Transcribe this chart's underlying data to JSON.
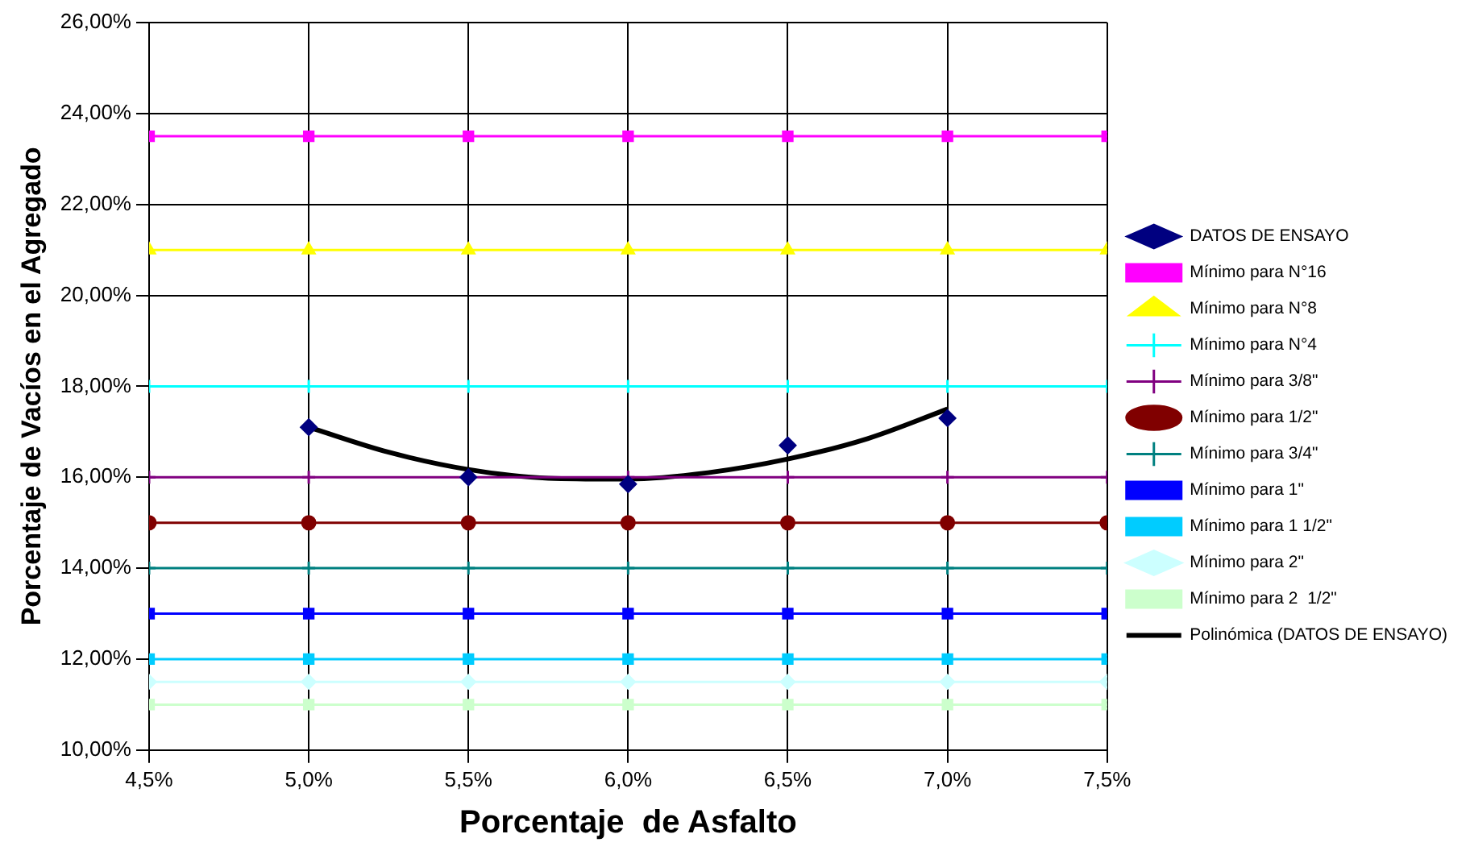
{
  "chart_data": {
    "type": "line",
    "xlabel": "Porcentaje  de Asfalto",
    "ylabel": "Porcentaje de Vacíos en el Agregado",
    "x": [
      4.5,
      5.0,
      5.5,
      6.0,
      6.5,
      7.0,
      7.5
    ],
    "xlim": [
      4.5,
      7.5
    ],
    "xticks": [
      {
        "value": 4.5,
        "label": "4,5%"
      },
      {
        "value": 5.0,
        "label": "5,0%"
      },
      {
        "value": 5.5,
        "label": "5,5%"
      },
      {
        "value": 6.0,
        "label": "6,0%"
      },
      {
        "value": 6.5,
        "label": "6,5%"
      },
      {
        "value": 7.0,
        "label": "7,0%"
      },
      {
        "value": 7.5,
        "label": "7,5%"
      }
    ],
    "ylim": [
      10,
      26
    ],
    "yticks": [
      {
        "value": 10,
        "label": "10,00%"
      },
      {
        "value": 12,
        "label": "12,00%"
      },
      {
        "value": 14,
        "label": "14,00%"
      },
      {
        "value": 16,
        "label": "16,00%"
      },
      {
        "value": 18,
        "label": "18,00%"
      },
      {
        "value": 20,
        "label": "20,00%"
      },
      {
        "value": 22,
        "label": "22,00%"
      },
      {
        "value": 24,
        "label": "24,00%"
      },
      {
        "value": 26,
        "label": "26,00%"
      }
    ],
    "grid": true,
    "legend": "right",
    "series": [
      {
        "name": "DATOS DE ENSAYO",
        "type": "scatter",
        "marker": "diamond",
        "color": "#000080",
        "x": [
          5.0,
          5.5,
          6.0,
          6.5,
          7.0
        ],
        "values": [
          17.1,
          16.0,
          15.85,
          16.7,
          17.3
        ]
      },
      {
        "name": "Mínimo para N°16",
        "marker": "square",
        "color": "#ff00ff",
        "values": [
          23.5,
          23.5,
          23.5,
          23.5,
          23.5,
          23.5,
          23.5
        ]
      },
      {
        "name": "Mínimo para N°8",
        "marker": "triangle",
        "color": "#ffff00",
        "values": [
          21,
          21,
          21,
          21,
          21,
          21,
          21
        ]
      },
      {
        "name": "Mínimo para N°4",
        "marker": "cross",
        "color": "#00ffff",
        "values": [
          18,
          18,
          18,
          18,
          18,
          18,
          18
        ]
      },
      {
        "name": "Mínimo para 3/8\"",
        "marker": "cross",
        "color": "#800080",
        "values": [
          16,
          16,
          16,
          16,
          16,
          16,
          16
        ]
      },
      {
        "name": "Mínimo para 1/2\"",
        "marker": "circle",
        "color": "#800000",
        "values": [
          15,
          15,
          15,
          15,
          15,
          15,
          15
        ]
      },
      {
        "name": "Mínimo para 3/4\"",
        "marker": "cross",
        "color": "#008080",
        "values": [
          14,
          14,
          14,
          14,
          14,
          14,
          14
        ]
      },
      {
        "name": "Mínimo para 1\"",
        "marker": "square",
        "color": "#0000ff",
        "values": [
          13,
          13,
          13,
          13,
          13,
          13,
          13
        ]
      },
      {
        "name": "Mínimo para 1 1/2\"",
        "marker": "square",
        "color": "#00ccff",
        "values": [
          12,
          12,
          12,
          12,
          12,
          12,
          12
        ]
      },
      {
        "name": "Mínimo para 2\"",
        "marker": "diamond",
        "color": "#ccffff",
        "values": [
          11.5,
          11.5,
          11.5,
          11.5,
          11.5,
          11.5,
          11.5
        ]
      },
      {
        "name": "Mínimo para 2  1/2\"",
        "marker": "square",
        "color": "#ccffcc",
        "values": [
          11,
          11,
          11,
          11,
          11,
          11,
          11
        ]
      },
      {
        "name": "Polinómica (DATOS DE ENSAYO)",
        "type": "line",
        "marker": "none",
        "color": "#000000",
        "x": [
          5.0,
          5.25,
          5.5,
          5.75,
          6.0,
          6.25,
          6.5,
          6.75,
          7.0
        ],
        "values": [
          17.1,
          16.55,
          16.17,
          15.98,
          15.96,
          16.1,
          16.4,
          16.85,
          17.5
        ]
      }
    ]
  }
}
